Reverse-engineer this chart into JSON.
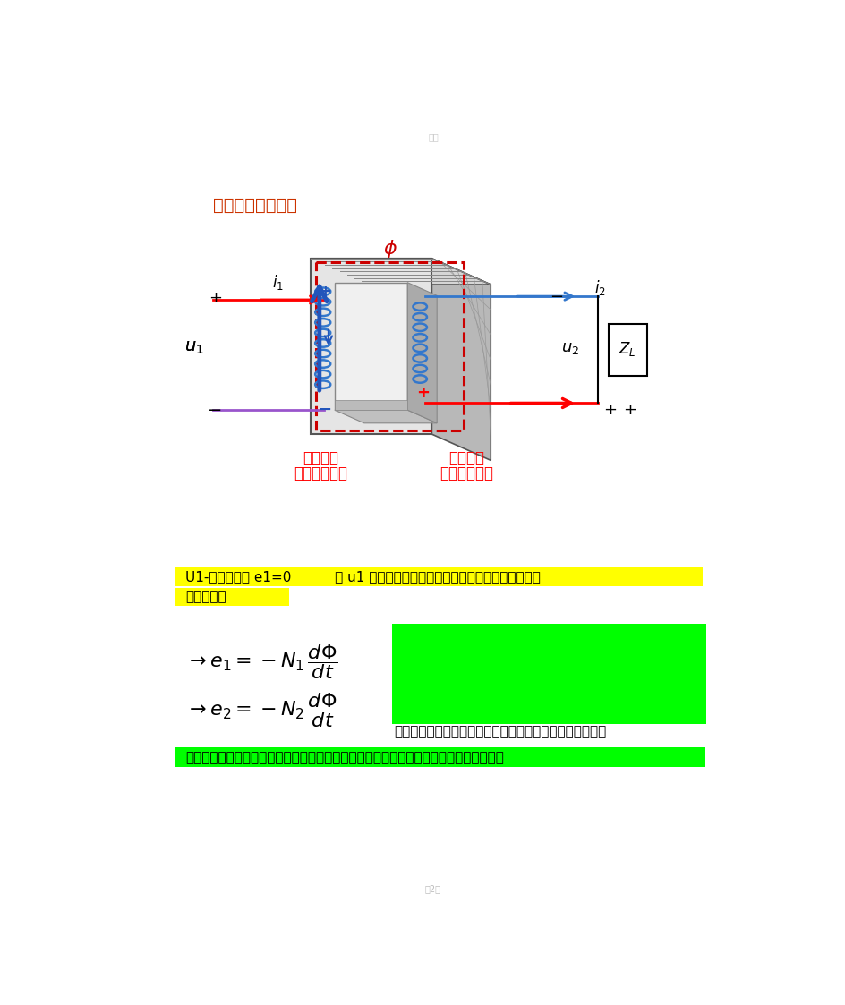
{
  "page_bg": "#ffffff",
  "title_text": "电压方向：正到负",
  "title_color": "#cc3300",
  "label1_line1": "磁通向上",
  "label1_line2": "阻碍磁通向下",
  "label2_line1": "磁通向下",
  "label2_line2": "阻碍磁通向上",
  "yellow_bg": "#ffff00",
  "green_bg": "#00ff00",
  "yellow_text1": "U1-感应电动势 e1=0          则 u1 等于感应电动势，说明感应电动势方向都和选的",
  "yellow_text2": "正方向一样",
  "after_formula_text": "这个式子只能说明，电动势的方向和电流的方向是相反的，",
  "bottom_text": "不能说明和磁通的方向相反（磁通的方向是向上的，电动势方向是线圈的方向，和电流方",
  "phi_label": "$\\phi$",
  "i1_label": "$i_1$",
  "i2_label": "$i_2$",
  "u1_label": "$u_1$",
  "u2_label": "$u_2$",
  "ZL_label": "$Z_L$",
  "page_num": "第2页",
  "edit_label": "编辑"
}
